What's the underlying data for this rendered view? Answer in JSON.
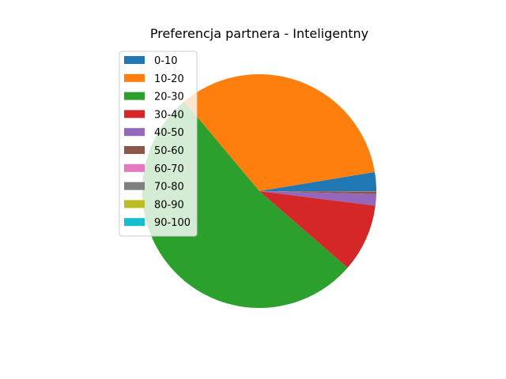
{
  "chart_data": {
    "type": "pie",
    "title": "Preferencja partnera - Inteligentny",
    "categories": [
      "0-10",
      "10-20",
      "20-30",
      "30-40",
      "40-50",
      "50-60",
      "60-70",
      "70-80",
      "80-90",
      "90-100"
    ],
    "values": [
      2.6,
      33.5,
      52.5,
      9.4,
      1.6,
      0.3,
      0.0,
      0.1,
      0.0,
      0.0
    ],
    "colors": [
      "#1f77b4",
      "#ff7f0e",
      "#2ca02c",
      "#d62728",
      "#9467bd",
      "#8c564b",
      "#e377c2",
      "#7f7f7f",
      "#bcbd22",
      "#17becf"
    ],
    "legend_position": "upper-left",
    "start_angle_deg": 0,
    "direction": "counterclockwise"
  }
}
